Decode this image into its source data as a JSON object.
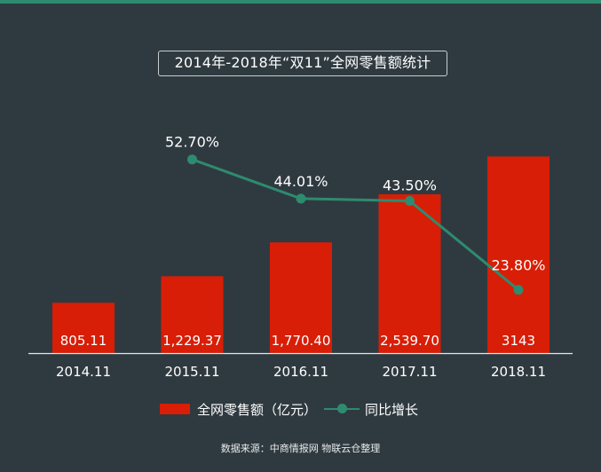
{
  "chart_data": {
    "type": "bar",
    "title": "2014年-2018年“双11”全网零售额统计",
    "categories": [
      "2014.11",
      "2015.11",
      "2016.11",
      "2017.11",
      "2018.11"
    ],
    "series": [
      {
        "name": "全网零售额（亿元）",
        "type": "bar",
        "values": [
          805.11,
          1229.37,
          1770.4,
          2539.7,
          3143
        ],
        "labels": [
          "805.11",
          "1,229.37",
          "1,770.40",
          "2,539.70",
          "3143"
        ],
        "color": "#d81e06"
      },
      {
        "name": "同比增长",
        "type": "line",
        "values": [
          null,
          52.7,
          44.01,
          43.5,
          23.8
        ],
        "labels": [
          "",
          "52.70%",
          "44.01%",
          "43.50%",
          "23.80%"
        ],
        "color": "#2e8b6f"
      }
    ],
    "ylim": [
      0,
      4000
    ],
    "y2lim": [
      0,
      100
    ],
    "grid": false,
    "legend": "bottom"
  },
  "source": "数据来源：中商情报网 物联云仓整理",
  "colors": {
    "background": "#2f3a40",
    "accent": "#2e8b6f",
    "bar": "#d81e06"
  }
}
